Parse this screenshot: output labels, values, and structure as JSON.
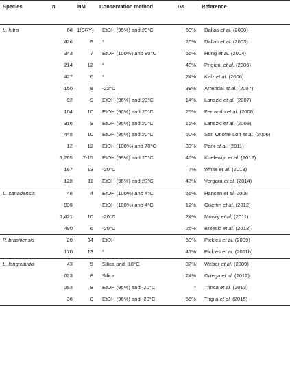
{
  "headers": {
    "species": "Species",
    "n": "n",
    "nm": "NM",
    "conservation": "Conservation method",
    "gs": "Gs",
    "reference": "Reference"
  },
  "rows": [
    {
      "species": "L. lutra",
      "n": "68",
      "nm": "1(SRY)",
      "method": "EtOH (95%) and 20°C",
      "gs": "60%",
      "ref_pre": "Dallas",
      "ref_etal": "et al.",
      "ref_post": "(2000)"
    },
    {
      "species": "",
      "n": "426",
      "nm": "9",
      "method": "*",
      "gs": "20%",
      "ref_pre": "Dallas",
      "ref_etal": "et al.",
      "ref_post": "(2003)"
    },
    {
      "species": "",
      "n": "343",
      "nm": "7",
      "method": "EtOH (100%) and 80°C",
      "gs": "65%",
      "ref_pre": "Hung",
      "ref_etal": "et al.",
      "ref_post": "(2004)"
    },
    {
      "species": "",
      "n": "214",
      "nm": "12",
      "method": "*",
      "gs": "48%",
      "ref_pre": "Prigioni",
      "ref_etal": "et al.",
      "ref_post": "(2006)"
    },
    {
      "species": "",
      "n": "427",
      "nm": "6",
      "method": "*",
      "gs": "24%",
      "ref_pre": "Kalz",
      "ref_etal": "et al.",
      "ref_post": "(2006)"
    },
    {
      "species": "",
      "n": "150",
      "nm": "8",
      "method": "-22°C",
      "gs": "38%",
      "ref_pre": "Arrendal",
      "ref_etal": "et al.",
      "ref_post": "(2007)"
    },
    {
      "species": "",
      "n": "92",
      "nm": "9",
      "method": "EtOH (96%) and 20°C",
      "gs": "14%",
      "ref_pre": "Lanszki",
      "ref_etal": "et al.",
      "ref_post": "(2007)"
    },
    {
      "species": "",
      "n": "104",
      "nm": "10",
      "method": "EtOH (96%) and 20°C",
      "gs": "25%",
      "ref_pre": "Ferrando",
      "ref_etal": "et al.",
      "ref_post": "(2008)"
    },
    {
      "species": "",
      "n": "316",
      "nm": "9",
      "method": "EtOH (96%) and 20°C",
      "gs": "15%",
      "ref_pre": "Lanszki",
      "ref_etal": "et al.",
      "ref_post": "(2009)"
    },
    {
      "species": "",
      "n": "448",
      "nm": "10",
      "method": "EtOH (96%) and 20°C",
      "gs": "60%",
      "ref_pre": "San Onofre Loft",
      "ref_etal": "et al.",
      "ref_post": "(2006)"
    },
    {
      "species": "",
      "n": "12",
      "nm": "12",
      "method": "EtOH (100%) and 70°C",
      "gs": "83%",
      "ref_pre": "Park",
      "ref_etal": "et al.",
      "ref_post": "(2011)"
    },
    {
      "species": "",
      "n": "1,265",
      "nm": "7-15",
      "method": "EtOH (99%) and 20°C",
      "gs": "46%",
      "ref_pre": "Koelewijn",
      "ref_etal": "et al.",
      "ref_post": "(2012)"
    },
    {
      "species": "",
      "n": "187",
      "nm": "13",
      "method": "-20°C",
      "gs": "7%",
      "ref_pre": "White",
      "ref_etal": "et al.",
      "ref_post": "(2013)"
    },
    {
      "species": "",
      "n": "128",
      "nm": "11",
      "method": "EtOH (96%) and 20°C",
      "gs": "43%",
      "ref_pre": "Vergara",
      "ref_etal": "et al.",
      "ref_post": "(2014)"
    },
    {
      "species": "L. canadensis",
      "group_start": true,
      "n": "48",
      "nm": "4",
      "method": "EtOH (100%) and 4°C",
      "gs": "56%",
      "ref_pre": "Hansen",
      "ref_etal": "et al.",
      "ref_post": "2008"
    },
    {
      "species": "",
      "n": "839",
      "nm": "",
      "method": "EtOH (100%) and 4°C",
      "gs": "12%",
      "ref_pre": "Guertin",
      "ref_etal": "et al.",
      "ref_post": "(2012)"
    },
    {
      "species": "",
      "n": "1,421",
      "nm": "10",
      "method": "-20°C",
      "gs": "24%",
      "ref_pre": "Mowry",
      "ref_etal": "et al.",
      "ref_post": "(2011)"
    },
    {
      "species": "",
      "n": "490",
      "nm": "6",
      "method": "-20°C",
      "gs": "25%",
      "ref_pre": "Brzeski",
      "ref_etal": "et al.",
      "ref_post": "(2013)"
    },
    {
      "species": "P. brasiliensis",
      "group_start": true,
      "n": "20",
      "nm": "34",
      "method": "EtOH",
      "gs": "60%",
      "ref_pre": "Pickles",
      "ref_etal": "et al.",
      "ref_post": "(2009)"
    },
    {
      "species": "",
      "n": "170",
      "nm": "13",
      "method": "*",
      "gs": "41%",
      "ref_pre": "Pickles",
      "ref_etal": "et al.",
      "ref_post": "(2011b)"
    },
    {
      "species": "L. longicaudis",
      "group_start": true,
      "n": "43",
      "nm": "5",
      "method": "Silica and -18°C",
      "gs": "37%",
      "ref_pre": "Weber",
      "ref_etal": "et al.",
      "ref_post": "(2009)"
    },
    {
      "species": "",
      "n": "623",
      "nm": "8",
      "method": "Silica",
      "gs": "24%",
      "ref_pre": "Ortega",
      "ref_etal": "et al.",
      "ref_post": "(2012)"
    },
    {
      "species": "",
      "n": "253",
      "nm": "8",
      "method": "EtOH (96%) and -20°C",
      "gs": "*",
      "ref_pre": "Trinca",
      "ref_etal": "et al.",
      "ref_post": "(2013)"
    },
    {
      "species": "",
      "n": "36",
      "nm": "8",
      "method": "EtOH (96%) and -20°C",
      "gs": "55%",
      "ref_pre": "Trigila",
      "ref_etal": "et al.",
      "ref_post": "(2015)"
    }
  ]
}
